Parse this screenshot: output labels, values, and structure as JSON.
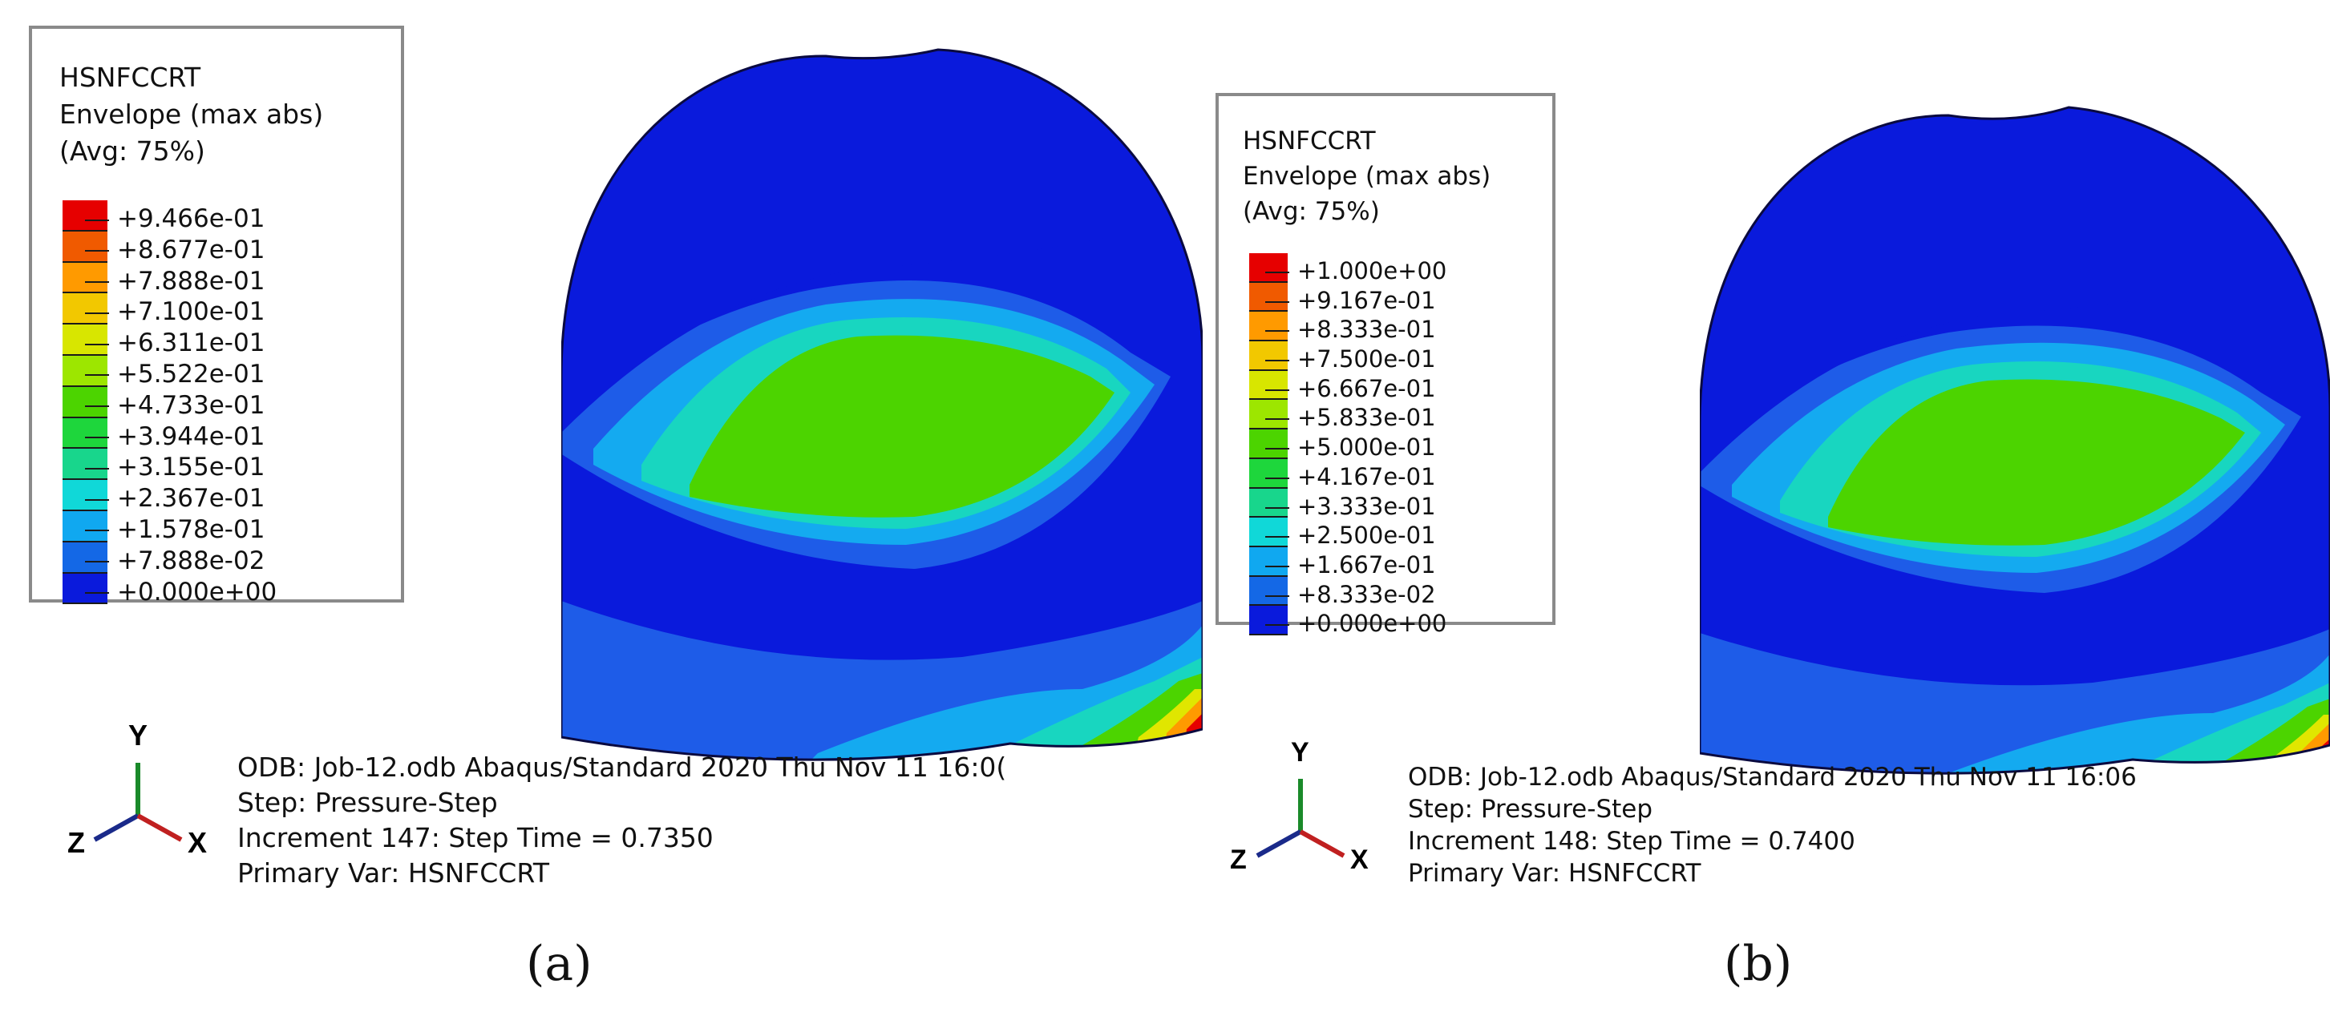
{
  "panels": [
    {
      "caption": "(a)",
      "legend": {
        "variable": "HSNFCCRT",
        "envelope": "Envelope (max abs)",
        "averaging": "(Avg: 75%)",
        "levels": [
          "+9.466e-01",
          "+8.677e-01",
          "+7.888e-01",
          "+7.100e-01",
          "+6.311e-01",
          "+5.522e-01",
          "+4.733e-01",
          "+3.944e-01",
          "+3.155e-01",
          "+2.367e-01",
          "+1.578e-01",
          "+7.888e-02",
          "+0.000e+00"
        ]
      },
      "info": {
        "odb_line": "ODB: Job-12.odb    Abaqus/Standard 2020    Thu Nov 11 16:0(",
        "step_line": "Step: Pressure-Step",
        "increment_line": "Increment    147: Step Time =    0.7350",
        "primary_var_line": "Primary Var: HSNFCCRT"
      }
    },
    {
      "caption": "(b)",
      "legend": {
        "variable": "HSNFCCRT",
        "envelope": "Envelope (max abs)",
        "averaging": "(Avg: 75%)",
        "levels": [
          "+1.000e+00",
          "+9.167e-01",
          "+8.333e-01",
          "+7.500e-01",
          "+6.667e-01",
          "+5.833e-01",
          "+5.000e-01",
          "+4.167e-01",
          "+3.333e-01",
          "+2.500e-01",
          "+1.667e-01",
          "+8.333e-02",
          "+0.000e+00"
        ]
      },
      "info": {
        "odb_line": "ODB: Job-12.odb    Abaqus/Standard 2020    Thu Nov 11 16:06",
        "step_line": "Step: Pressure-Step",
        "increment_line": "Increment    148: Step Time =    0.7400",
        "primary_var_line": "Primary Var: HSNFCCRT"
      }
    }
  ],
  "colormap": [
    "#e60000",
    "#f05a00",
    "#ff9a00",
    "#f2c800",
    "#d8e600",
    "#9de600",
    "#4cd400",
    "#1ed63c",
    "#18d68c",
    "#10d8d8",
    "#10a8f0",
    "#1468e6",
    "#0a1adc"
  ],
  "triad": {
    "y_label": "Y",
    "z_label": "Z",
    "x_label": "X",
    "colors": {
      "y": "#1a8a2a",
      "z": "#1a2a8a",
      "x": "#c02020"
    }
  },
  "model_colors": {
    "base": "#0a1adc",
    "band_light": "#1e5ce8",
    "band_cyan": "#14aaf0",
    "band_teal": "#18d6c0",
    "band_green": "#4cd400",
    "band_yellow": "#e0e600",
    "band_orange": "#ff9a00",
    "band_red": "#e60000"
  }
}
